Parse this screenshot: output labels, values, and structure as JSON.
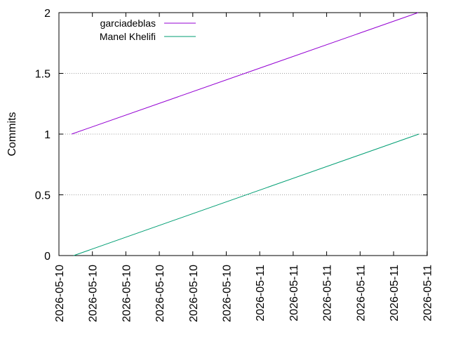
{
  "chart_data": {
    "type": "line",
    "ylabel": "Commits",
    "xlabel": "",
    "title": "",
    "ylim": [
      0,
      2
    ],
    "y_ticks": [
      "0",
      "0.5",
      "1",
      "1.5",
      "2"
    ],
    "y_tick_values": [
      0,
      0.5,
      1,
      1.5,
      2
    ],
    "x_ticks": [
      "2026-05-10",
      "2026-05-10",
      "2026-05-10",
      "2026-05-10",
      "2026-05-10",
      "2026-05-10",
      "2026-05-11",
      "2026-05-11",
      "2026-05-11",
      "2026-05-11",
      "2026-05-11",
      "2026-05-11"
    ],
    "grid": "horizontal dashed",
    "legend_position": "top-left",
    "series": [
      {
        "name": "garciadeblas",
        "color": "#9400d3",
        "x": [
          "2026-05-10 early",
          "2026-05-11 late"
        ],
        "y": [
          1,
          2
        ]
      },
      {
        "name": "Manel Khelifi",
        "color": "#009e73",
        "x": [
          "2026-05-10 early",
          "2026-05-11 late"
        ],
        "y": [
          0,
          1
        ]
      }
    ]
  }
}
